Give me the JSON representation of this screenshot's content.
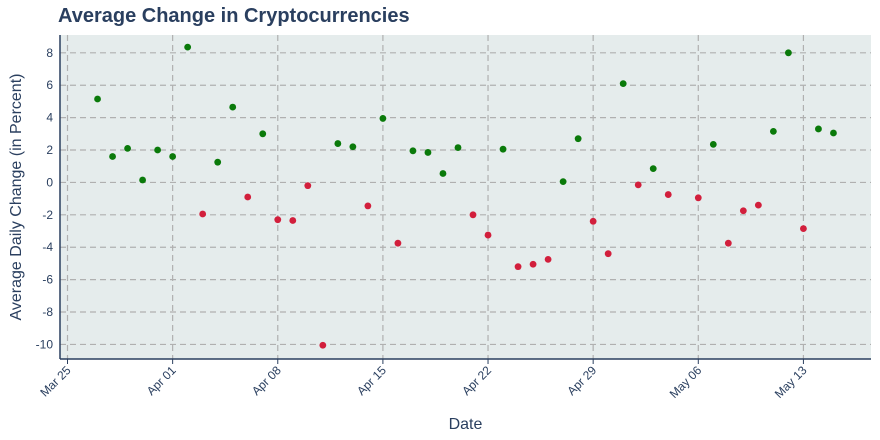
{
  "chart_data": {
    "type": "scatter",
    "title": "Average Change in Cryptocurrencies",
    "xlabel": "Date",
    "ylabel": "Average Daily Change (in Percent)",
    "x_tick_labels": [
      "Mar 25",
      "Apr 01",
      "Apr 08",
      "Apr 15",
      "Apr 22",
      "Apr 29",
      "May 06",
      "May 13"
    ],
    "y_tick_labels": [
      "8",
      "6",
      "4",
      "2",
      "0",
      "-2",
      "-4",
      "-6",
      "-8",
      "-10"
    ],
    "ylim": [
      -10.9,
      9.1
    ],
    "xlim": [
      "2024-03-24T12:00",
      "2024-05-17T12:00"
    ],
    "grid": true,
    "colors": {
      "positive": "#0a7a0a",
      "negative": "#d21f3c",
      "plot_background": "#e5ecec",
      "grid": "#b0b0b0",
      "axis": "#2a3f5f"
    },
    "points": [
      {
        "x": "2024-03-27",
        "y": 5.15
      },
      {
        "x": "2024-03-28",
        "y": 1.6
      },
      {
        "x": "2024-03-29",
        "y": 2.1
      },
      {
        "x": "2024-03-30",
        "y": 0.15
      },
      {
        "x": "2024-03-31",
        "y": 2.0
      },
      {
        "x": "2024-04-01",
        "y": 1.6
      },
      {
        "x": "2024-04-02",
        "y": 8.35
      },
      {
        "x": "2024-04-03",
        "y": -1.95
      },
      {
        "x": "2024-04-04",
        "y": 1.25
      },
      {
        "x": "2024-04-05",
        "y": 4.65
      },
      {
        "x": "2024-04-06",
        "y": -0.9
      },
      {
        "x": "2024-04-07",
        "y": 3.0
      },
      {
        "x": "2024-04-08",
        "y": -2.3
      },
      {
        "x": "2024-04-09",
        "y": -2.35
      },
      {
        "x": "2024-04-10",
        "y": -0.2
      },
      {
        "x": "2024-04-11",
        "y": -10.05
      },
      {
        "x": "2024-04-12",
        "y": 2.4
      },
      {
        "x": "2024-04-13",
        "y": 2.2
      },
      {
        "x": "2024-04-14",
        "y": -1.45
      },
      {
        "x": "2024-04-15",
        "y": 3.95
      },
      {
        "x": "2024-04-16",
        "y": -3.75
      },
      {
        "x": "2024-04-17",
        "y": 1.95
      },
      {
        "x": "2024-04-18",
        "y": 1.85
      },
      {
        "x": "2024-04-19",
        "y": 0.55
      },
      {
        "x": "2024-04-20",
        "y": 2.15
      },
      {
        "x": "2024-04-21",
        "y": -2.0
      },
      {
        "x": "2024-04-22",
        "y": -3.25
      },
      {
        "x": "2024-04-23",
        "y": 2.05
      },
      {
        "x": "2024-04-24",
        "y": -5.2
      },
      {
        "x": "2024-04-25",
        "y": -5.05
      },
      {
        "x": "2024-04-26",
        "y": -4.75
      },
      {
        "x": "2024-04-27",
        "y": 0.05
      },
      {
        "x": "2024-04-28",
        "y": 2.7
      },
      {
        "x": "2024-04-29",
        "y": -2.4
      },
      {
        "x": "2024-04-30",
        "y": -4.4
      },
      {
        "x": "2024-05-01",
        "y": 6.1
      },
      {
        "x": "2024-05-02",
        "y": -0.15
      },
      {
        "x": "2024-05-03",
        "y": 0.85
      },
      {
        "x": "2024-05-04",
        "y": -0.75
      },
      {
        "x": "2024-05-06",
        "y": -0.95
      },
      {
        "x": "2024-05-07",
        "y": 2.35
      },
      {
        "x": "2024-05-08",
        "y": -3.75
      },
      {
        "x": "2024-05-09",
        "y": -1.75
      },
      {
        "x": "2024-05-10",
        "y": -1.4
      },
      {
        "x": "2024-05-11",
        "y": 3.15
      },
      {
        "x": "2024-05-12",
        "y": 8.0
      },
      {
        "x": "2024-05-13",
        "y": -2.85
      },
      {
        "x": "2024-05-14",
        "y": 3.3
      },
      {
        "x": "2024-05-15",
        "y": 3.05
      }
    ]
  }
}
